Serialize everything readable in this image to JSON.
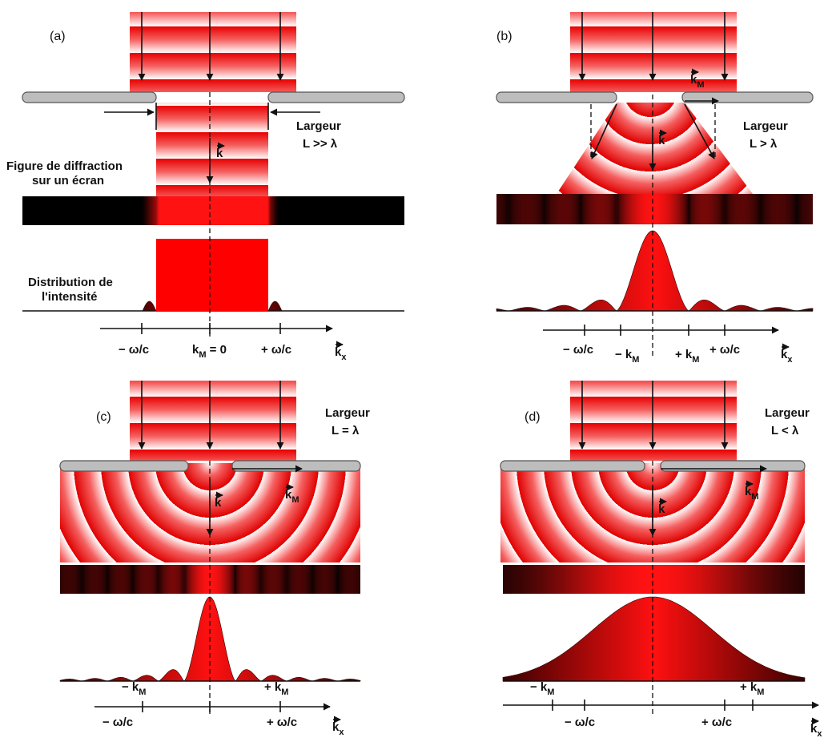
{
  "panels": [
    {
      "label": "(a)",
      "width": [
        "Largeur",
        "L >> λ"
      ],
      "k": {
        "text": "k"
      },
      "axis": [
        {
          "text": "− ω/c"
        },
        {
          "text": "k",
          "sub": "M",
          "tail": " = 0"
        },
        {
          "text": "+ ω/c"
        },
        {
          "text": "k",
          "sub": "x"
        }
      ]
    },
    {
      "label": "(b)",
      "width": [
        "Largeur",
        "L > λ"
      ],
      "k": {
        "text": "k"
      },
      "k_m": {
        "text": "k",
        "sub": "M"
      },
      "axis": [
        {
          "text": "− ω/c"
        },
        {
          "text": "− k",
          "sub": "M"
        },
        {
          "text": "+ k",
          "sub": "M"
        },
        {
          "text": "+ ω/c"
        },
        {
          "text": "k",
          "sub": "x"
        }
      ]
    },
    {
      "label": "(c)",
      "width": [
        "Largeur",
        "L = λ"
      ],
      "k": {
        "text": "k"
      },
      "k_m": {
        "text": "k",
        "sub": "M"
      },
      "axis": [
        {
          "text": "− k",
          "sub": "M"
        },
        {
          "text": "+ k",
          "sub": "M"
        },
        {
          "text": "− ω/c"
        },
        {
          "text": "+ ω/c"
        },
        {
          "text": "k",
          "sub": "x"
        }
      ]
    },
    {
      "label": "(d)",
      "width": [
        "Largeur",
        "L < λ"
      ],
      "k": {
        "text": "k"
      },
      "k_m": {
        "text": "k",
        "sub": "M"
      },
      "axis": [
        {
          "text": "− k",
          "sub": "M"
        },
        {
          "text": "− ω/c"
        },
        {
          "text": "+ ω/c"
        },
        {
          "text": "+ k",
          "sub": "M"
        },
        {
          "text": "k",
          "sub": "x"
        }
      ]
    }
  ],
  "screen_note": [
    "Figure de diffraction",
    "sur un écran"
  ],
  "intensity_note": [
    "Distribution de",
    "l'intensité"
  ]
}
